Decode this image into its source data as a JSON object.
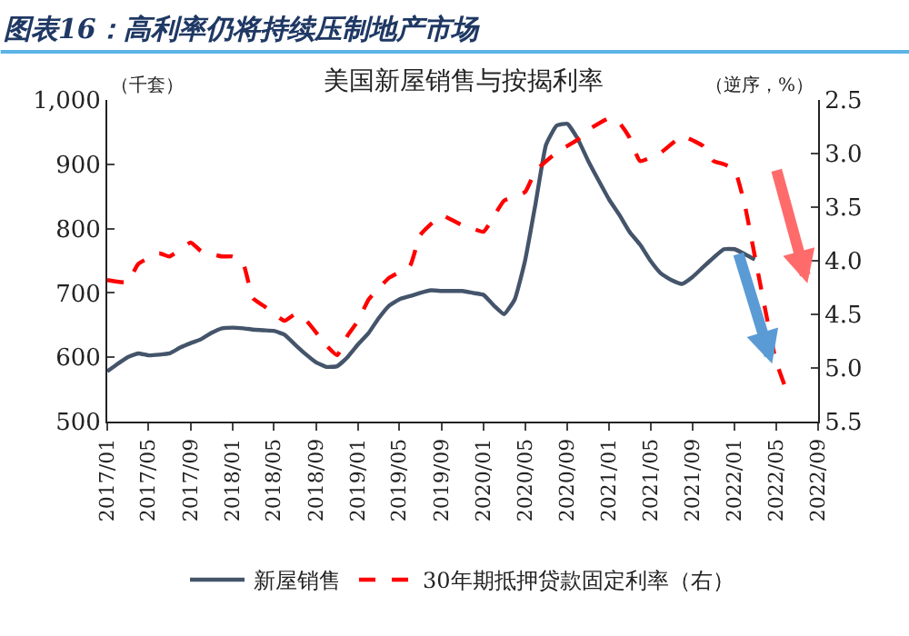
{
  "chart_data": {
    "type": "line",
    "title": "图表16：高利率仍将持续压制地产市场",
    "subtitle": "美国新屋销售与按揭利率",
    "ylabel": "（千套）",
    "y2label": "（逆序，%）",
    "series": [
      {
        "name": "新屋销售",
        "color": "#44546a",
        "line_style": "solid",
        "x": [
          "2017-01",
          "2017-02",
          "2017-03",
          "2017-04",
          "2017-05",
          "2017-06",
          "2017-07",
          "2017-08",
          "2017-09",
          "2017-10",
          "2017-11",
          "2017-12",
          "2018-01",
          "2018-02",
          "2018-03",
          "2018-04",
          "2018-05",
          "2018-06",
          "2018-07",
          "2018-08",
          "2018-09",
          "2018-10",
          "2018-11",
          "2018-12",
          "2019-01",
          "2019-02",
          "2019-03",
          "2019-04",
          "2019-05",
          "2019-06",
          "2019-07",
          "2019-08",
          "2019-09",
          "2019-10",
          "2019-11",
          "2019-12",
          "2020-01",
          "2020-02",
          "2020-03",
          "2020-04",
          "2020-05",
          "2020-06",
          "2020-07",
          "2020-08",
          "2020-09",
          "2020-10",
          "2020-11",
          "2020-12",
          "2021-01",
          "2021-02",
          "2021-03",
          "2021-04",
          "2021-05",
          "2021-06",
          "2021-07",
          "2021-08",
          "2021-09",
          "2021-10",
          "2021-11",
          "2021-12",
          "2022-01",
          "2022-02",
          "2022-03"
        ],
        "values": [
          578,
          590,
          600,
          606,
          603,
          604,
          606,
          615,
          622,
          628,
          638,
          645,
          646,
          645,
          643,
          642,
          641,
          635,
          620,
          605,
          592,
          585,
          586,
          600,
          620,
          638,
          660,
          680,
          690,
          695,
          700,
          704,
          703,
          703,
          703,
          700,
          697,
          680,
          667,
          690,
          750,
          840,
          930,
          960,
          963,
          940,
          905,
          875,
          845,
          820,
          795,
          775,
          750,
          730,
          720,
          714,
          725,
          740,
          755,
          768,
          768,
          760,
          752
        ]
      },
      {
        "name": "30年期抵押贷款固定利率（右）",
        "color": "#ff0000",
        "line_style": "dashed",
        "axis": "y2",
        "x": [
          "2017-01",
          "2017-03",
          "2017-04",
          "2017-06",
          "2017-07",
          "2017-09",
          "2017-10",
          "2017-12",
          "2018-01",
          "2018-02",
          "2018-03",
          "2018-04",
          "2018-06",
          "2018-07",
          "2018-08",
          "2018-10",
          "2018-11",
          "2018-12",
          "2019-01",
          "2019-02",
          "2019-04",
          "2019-06",
          "2019-07",
          "2019-09",
          "2019-11",
          "2019-12",
          "2020-01",
          "2020-03",
          "2020-05",
          "2020-06",
          "2020-08",
          "2020-10",
          "2020-11",
          "2021-01",
          "2021-02",
          "2021-03",
          "2021-04",
          "2021-06",
          "2021-08",
          "2021-10",
          "2021-11",
          "2021-12",
          "2022-01",
          "2022-02",
          "2022-03",
          "2022-04",
          "2022-05",
          "2022-06"
        ],
        "values": [
          4.18,
          4.2,
          4.03,
          3.93,
          3.96,
          3.83,
          3.91,
          3.96,
          3.96,
          4.03,
          4.35,
          4.42,
          4.56,
          4.5,
          4.55,
          4.79,
          4.88,
          4.7,
          4.56,
          4.36,
          4.16,
          4.05,
          3.76,
          3.58,
          3.67,
          3.7,
          3.73,
          3.44,
          3.36,
          3.16,
          2.99,
          2.87,
          2.78,
          2.67,
          2.72,
          2.85,
          3.07,
          2.99,
          2.84,
          2.93,
          3.07,
          3.1,
          3.15,
          3.5,
          3.96,
          4.47,
          4.93,
          5.21
        ]
      }
    ],
    "xlim": [
      "2017-01",
      "2022-09"
    ],
    "xticks": [
      {
        "value": "2017-01",
        "label": "2017/01"
      },
      {
        "value": "2017-05",
        "label": "2017/05"
      },
      {
        "value": "2017-09",
        "label": "2017/09"
      },
      {
        "value": "2018-01",
        "label": "2018/01"
      },
      {
        "value": "2018-05",
        "label": "2018/05"
      },
      {
        "value": "2018-09",
        "label": "2018/09"
      },
      {
        "value": "2019-01",
        "label": "2019/01"
      },
      {
        "value": "2019-05",
        "label": "2019/05"
      },
      {
        "value": "2019-09",
        "label": "2019/09"
      },
      {
        "value": "2020-01",
        "label": "2020/01"
      },
      {
        "value": "2020-05",
        "label": "2020/05"
      },
      {
        "value": "2020-09",
        "label": "2020/09"
      },
      {
        "value": "2021-01",
        "label": "2021/01"
      },
      {
        "value": "2021-05",
        "label": "2021/05"
      },
      {
        "value": "2021-09",
        "label": "2021/09"
      },
      {
        "value": "2022-01",
        "label": "2022/01"
      },
      {
        "value": "2022-05",
        "label": "2022/05"
      },
      {
        "value": "2022-09",
        "label": "2022/09"
      }
    ],
    "ylim": [
      500,
      1000
    ],
    "yticks": [
      500,
      600,
      700,
      800,
      900,
      {
        "value": 1000,
        "label": "1,000"
      }
    ],
    "y2lim": [
      5.5,
      2.5
    ],
    "y2ticks": [
      2.5,
      {
        "value": 3,
        "label": "3.0"
      },
      3.5,
      {
        "value": 4,
        "label": "4.0"
      },
      4.5,
      {
        "value": 5,
        "label": "5.0"
      },
      5.5
    ],
    "legend": "bottom",
    "marker": "none"
  }
}
